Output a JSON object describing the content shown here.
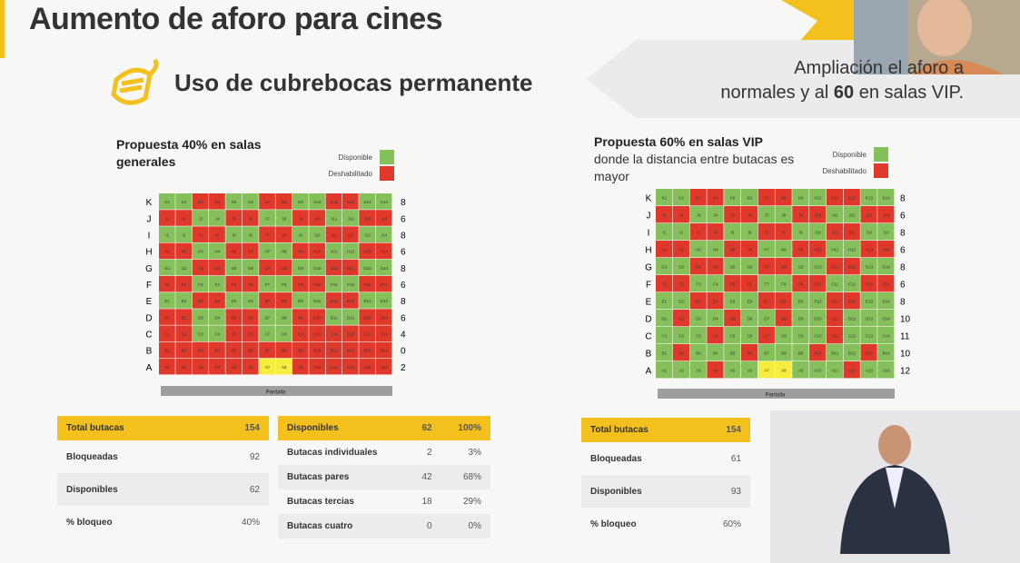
{
  "header": {
    "title": "Aumento de aforo para cines",
    "subtitle": "Uso de cubrebocas permanente",
    "banner_line1": "Ampliación el aforo a",
    "banner_line2_pre": "normales y al",
    "banner_line2_bold": "60",
    "banner_line2_post": "en salas VIP."
  },
  "seating": {
    "rows": [
      "K",
      "J",
      "I",
      "H",
      "G",
      "F",
      "E",
      "D",
      "C",
      "B",
      "A"
    ],
    "seats": [
      [
        "K1",
        "K2",
        "K3",
        "K4",
        "K5",
        "K6",
        "K7",
        "K8",
        "K9",
        "K10",
        "K11",
        "K12",
        "K13",
        "K14"
      ],
      [
        "J1",
        "J2",
        "J3",
        "J4",
        "J5",
        "J6",
        "J7",
        "J8",
        "J9",
        "J10",
        "J11",
        "J12",
        "J13",
        "J14"
      ],
      [
        "I1",
        "I2",
        "I3",
        "I4",
        "I5",
        "I6",
        "I7",
        "I8",
        "I9",
        "I10",
        "I11",
        "I12",
        "I13",
        "I14"
      ],
      [
        "H1",
        "H2",
        "H3",
        "H4",
        "H5",
        "H6",
        "H7",
        "H8",
        "H9",
        "H10",
        "H11",
        "H12",
        "H13",
        "H14"
      ],
      [
        "G1",
        "G2",
        "G3",
        "G4",
        "G5",
        "G6",
        "G7",
        "G8",
        "G9",
        "G10",
        "G11",
        "G12",
        "G13",
        "G14"
      ],
      [
        "F1",
        "F2",
        "F3",
        "F4",
        "F5",
        "F6",
        "F7",
        "F8",
        "F9",
        "F10",
        "F11",
        "F12",
        "F13",
        "F14"
      ],
      [
        "E1",
        "E2",
        "E3",
        "E4",
        "E5",
        "E6",
        "E7",
        "E8",
        "E9",
        "E10",
        "E11",
        "E12",
        "E13",
        "E14"
      ],
      [
        "D1",
        "D2",
        "D3",
        "D4",
        "D5",
        "D6",
        "D7",
        "D8",
        "D9",
        "D10",
        "D11",
        "D12",
        "D13",
        "D14"
      ],
      [
        "C1",
        "C2",
        "C3",
        "C4",
        "C5",
        "C6",
        "C7",
        "C8",
        "C9",
        "C10",
        "C11",
        "C12",
        "C13",
        "C14"
      ],
      [
        "B1",
        "B2",
        "B3",
        "B4",
        "B5",
        "B6",
        "B7",
        "B8",
        "B9",
        "B10",
        "B11",
        "B12",
        "B13",
        "B14"
      ],
      [
        "A1",
        "A2",
        "A3",
        "A4",
        "A5",
        "A6",
        "A7",
        "A8",
        "A9",
        "A10",
        "A11",
        "A12",
        "A13",
        "A14"
      ]
    ]
  },
  "grids": [
    {
      "title": "Propuesta 40% en salas generales",
      "legend_available": "Disponible",
      "legend_disabled": "Deshabilitado",
      "screen": "Pantalla",
      "counts": [
        8,
        6,
        8,
        6,
        8,
        6,
        8,
        6,
        4,
        0,
        2
      ],
      "status": [
        "GGRRGGRRGGRRGG",
        "RRGGRRGGRRGGRR",
        "GGRRGGRRGGRRGG",
        "RRGGRRGGRRGGRR",
        "GGRRGGRRGGRRGG",
        "RRGGRRGGRRGGRR",
        "GGRRGGRRGGRRGG",
        "RRGGRRGGRRGGRR",
        "RRGGRRGGRRRRRR",
        "RRRRRRRRRRRRRR",
        "RRRRRRYYRRRRRR"
      ]
    },
    {
      "title": "Propuesta 60% en salas VIP",
      "subtitle": "donde la distancia entre butacas es mayor",
      "legend_available": "Disponible",
      "legend_disabled": "Deshabilitado",
      "screen": "Pantalla",
      "counts": [
        8,
        6,
        8,
        6,
        8,
        6,
        8,
        10,
        11,
        10,
        12
      ],
      "status": [
        "GGRRGGRRGGRRGG",
        "RRGGRRGGRRGGRR",
        "GGRRGGRRGGRRGG",
        "RRGGRRGGRRGGRR",
        "GGRRGGRRGGRRGG",
        "RRGGRRGGRRGGRR",
        "GGRRGGRRGGRRGG",
        "GRGGRGGRGGRGGG",
        "GGGRGGRGGGRGGG",
        "GRGGGRGGGRGGRG",
        "GGGRGGYYGGGRGG"
      ]
    }
  ],
  "tables": [
    {
      "rows": [
        [
          "Total butacas",
          "154"
        ],
        [
          "Bloqueadas",
          "92"
        ],
        [
          "Disponibles",
          "62"
        ],
        [
          "% bloqueo",
          "40%"
        ]
      ]
    },
    {
      "rows": [
        [
          "Disponibles",
          "62",
          "100%"
        ],
        [
          "Butacas individuales",
          "2",
          "3%"
        ],
        [
          "Butacas pares",
          "42",
          "68%"
        ],
        [
          "Butacas tercias",
          "18",
          "29%"
        ],
        [
          "Butacas cuatro",
          "0",
          "0%"
        ]
      ]
    },
    {
      "rows": [
        [
          "Total butacas",
          "154"
        ],
        [
          "Bloqueadas",
          "61"
        ],
        [
          "Disponibles",
          "93"
        ],
        [
          "% bloqueo",
          "60%"
        ]
      ]
    }
  ]
}
